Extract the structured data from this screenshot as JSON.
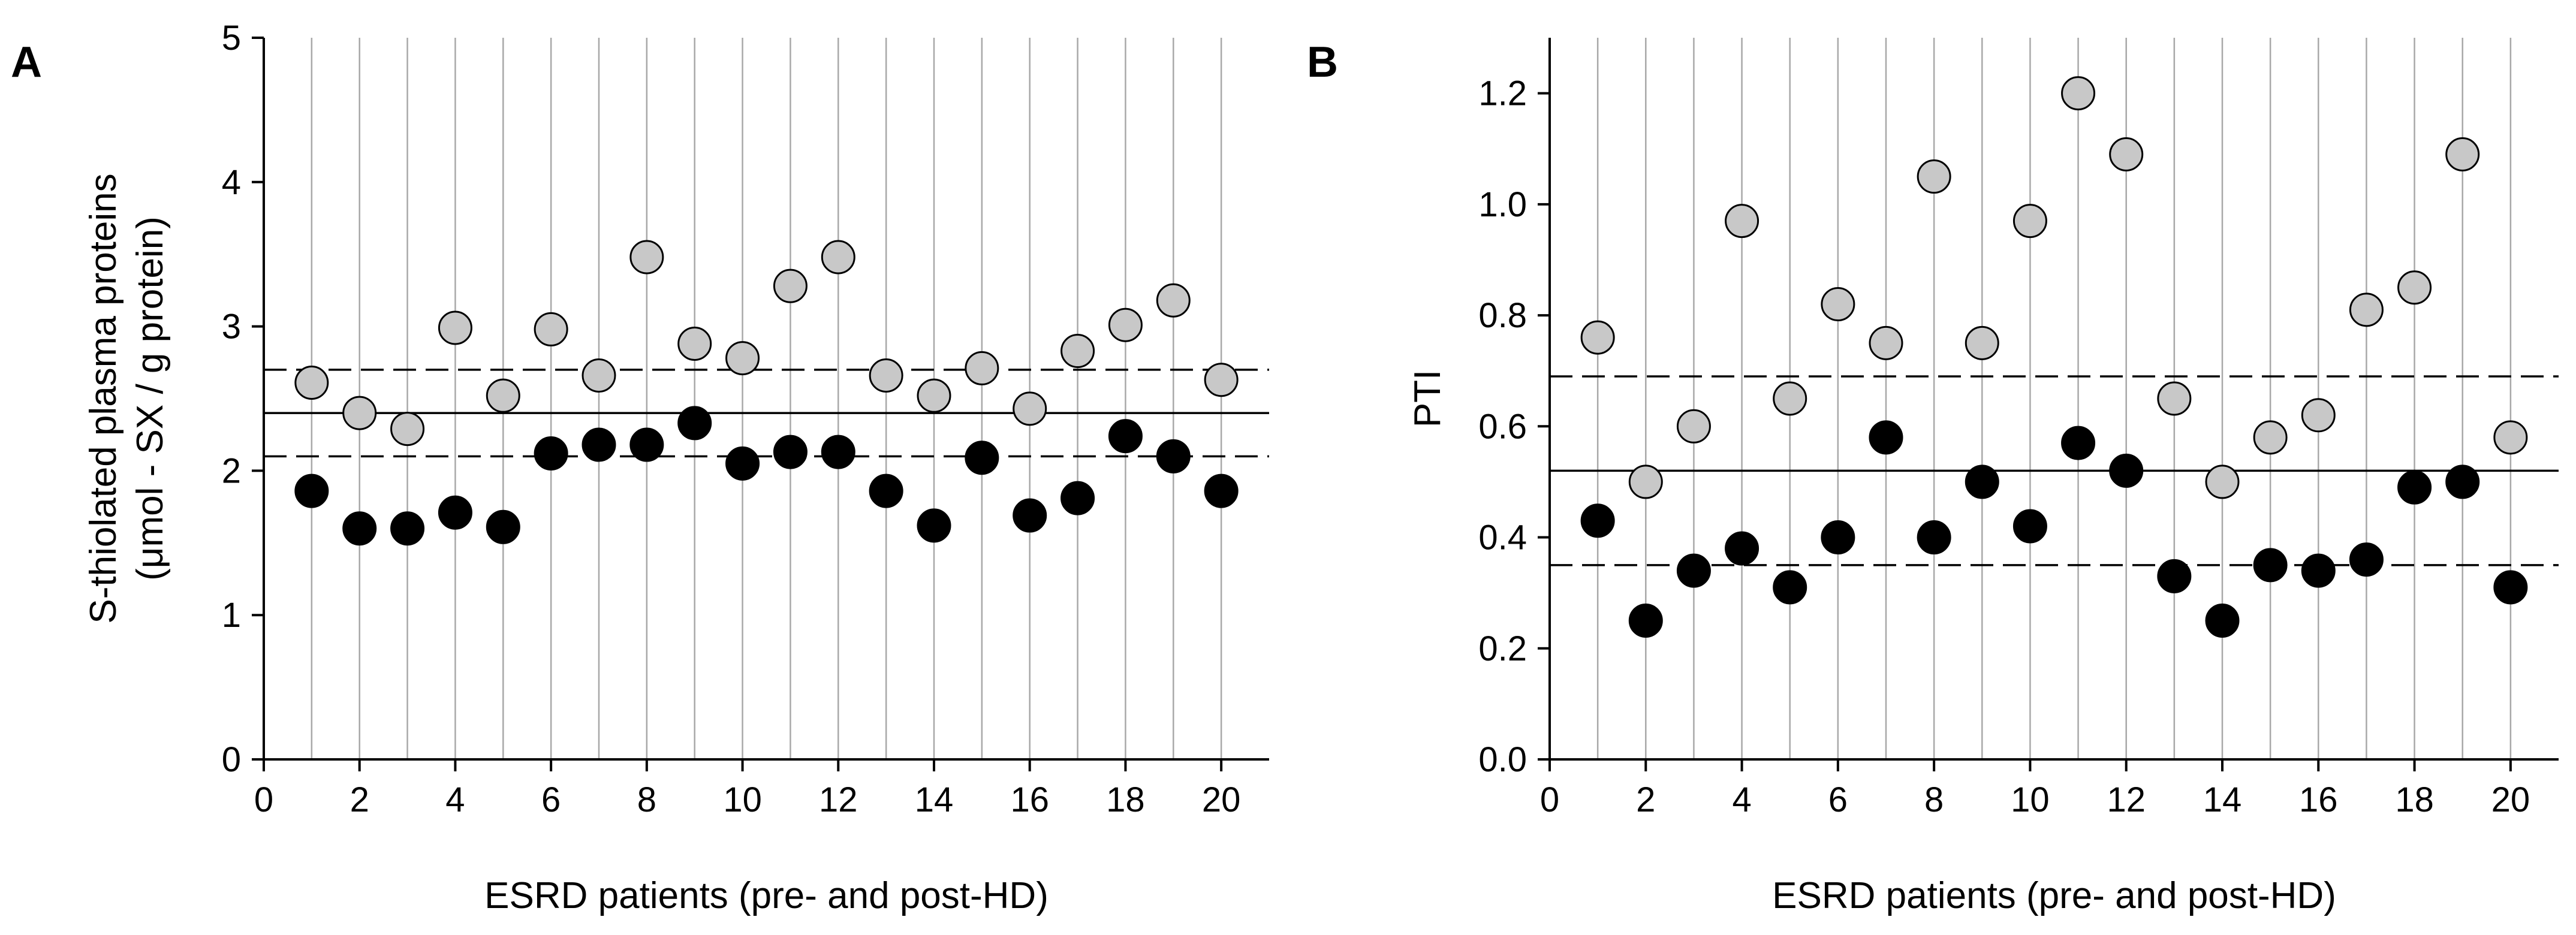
{
  "figure": {
    "colors": {
      "pre_fill": "#c8c8c8",
      "post_fill": "#000000",
      "point_stroke": "#000000",
      "grid": "#a8a8a8",
      "axis": "#000000",
      "reference_line": "#000000"
    }
  },
  "chart_data": [
    {
      "type": "scatter",
      "panel": "A",
      "title": "",
      "xlabel": "ESRD patients (pre- and post-HD)",
      "ylabel_line1": "S-thiolated plasma proteins",
      "ylabel_line2": "(μmol - SX / g protein)",
      "xlim": [
        0,
        21
      ],
      "ylim": [
        0,
        5
      ],
      "xticks": [
        0,
        2,
        4,
        6,
        8,
        10,
        12,
        14,
        16,
        18,
        20
      ],
      "yticks": [
        0,
        1,
        2,
        3,
        4,
        5
      ],
      "ytick_labels": [
        "0",
        "1",
        "2",
        "3",
        "4",
        "5"
      ],
      "vertical_grid_x": [
        1,
        2,
        3,
        4,
        5,
        6,
        7,
        8,
        9,
        10,
        11,
        12,
        13,
        14,
        15,
        16,
        17,
        18,
        19,
        20
      ],
      "reference_lines": [
        {
          "name": "mean",
          "y": 2.4,
          "style": "solid"
        },
        {
          "name": "upper",
          "y": 2.7,
          "style": "dashed"
        },
        {
          "name": "lower",
          "y": 2.1,
          "style": "dashed"
        }
      ],
      "series": [
        {
          "name": "pre-HD",
          "marker": "gray",
          "x": [
            1,
            2,
            3,
            4,
            5,
            6,
            7,
            8,
            9,
            10,
            11,
            12,
            13,
            14,
            15,
            16,
            17,
            18,
            19,
            20
          ],
          "values": [
            2.61,
            2.4,
            2.29,
            2.99,
            2.52,
            2.98,
            2.66,
            3.48,
            2.88,
            2.78,
            3.28,
            3.48,
            2.66,
            2.52,
            2.71,
            2.43,
            2.83,
            3.01,
            3.18,
            2.63
          ]
        },
        {
          "name": "post-HD",
          "marker": "black",
          "x": [
            1,
            2,
            3,
            4,
            5,
            6,
            7,
            8,
            9,
            10,
            11,
            12,
            13,
            14,
            15,
            16,
            17,
            18,
            19,
            20
          ],
          "values": [
            1.86,
            1.6,
            1.6,
            1.71,
            1.61,
            2.12,
            2.18,
            2.18,
            2.33,
            2.05,
            2.13,
            2.13,
            1.86,
            1.62,
            2.09,
            1.69,
            1.81,
            2.24,
            2.1,
            1.86
          ]
        }
      ]
    },
    {
      "type": "scatter",
      "panel": "B",
      "title": "",
      "xlabel": "ESRD patients (pre- and post-HD)",
      "ylabel_line1": "PTI",
      "ylabel_line2": "",
      "xlim": [
        0,
        21
      ],
      "ylim": [
        0,
        1.3
      ],
      "xticks": [
        0,
        2,
        4,
        6,
        8,
        10,
        12,
        14,
        16,
        18,
        20
      ],
      "yticks": [
        0,
        0.2,
        0.4,
        0.6,
        0.8,
        1.0,
        1.2
      ],
      "ytick_labels": [
        "0.0",
        "0.2",
        "0.4",
        "0.6",
        "0.8",
        "1.0",
        "1.2"
      ],
      "vertical_grid_x": [
        1,
        2,
        3,
        4,
        5,
        6,
        7,
        8,
        9,
        10,
        11,
        12,
        13,
        14,
        15,
        16,
        17,
        18,
        19,
        20
      ],
      "reference_lines": [
        {
          "name": "mean",
          "y": 0.52,
          "style": "solid"
        },
        {
          "name": "upper",
          "y": 0.69,
          "style": "dashed"
        },
        {
          "name": "lower",
          "y": 0.35,
          "style": "dashed"
        }
      ],
      "series": [
        {
          "name": "pre-HD",
          "marker": "gray",
          "x": [
            1,
            2,
            3,
            4,
            5,
            6,
            7,
            8,
            9,
            10,
            11,
            12,
            13,
            14,
            15,
            16,
            17,
            18,
            19,
            20
          ],
          "values": [
            0.76,
            0.5,
            0.6,
            0.97,
            0.65,
            0.82,
            0.75,
            1.05,
            0.75,
            0.97,
            1.2,
            1.09,
            0.65,
            0.5,
            0.58,
            0.62,
            0.81,
            0.85,
            1.09,
            0.58
          ]
        },
        {
          "name": "post-HD",
          "marker": "black",
          "x": [
            1,
            2,
            3,
            4,
            5,
            6,
            7,
            8,
            9,
            10,
            11,
            12,
            13,
            14,
            15,
            16,
            17,
            18,
            19,
            20
          ],
          "values": [
            0.43,
            0.25,
            0.34,
            0.38,
            0.31,
            0.4,
            0.58,
            0.4,
            0.5,
            0.42,
            0.57,
            0.52,
            0.33,
            0.25,
            0.35,
            0.34,
            0.36,
            0.49,
            0.5,
            0.31
          ]
        }
      ]
    }
  ]
}
